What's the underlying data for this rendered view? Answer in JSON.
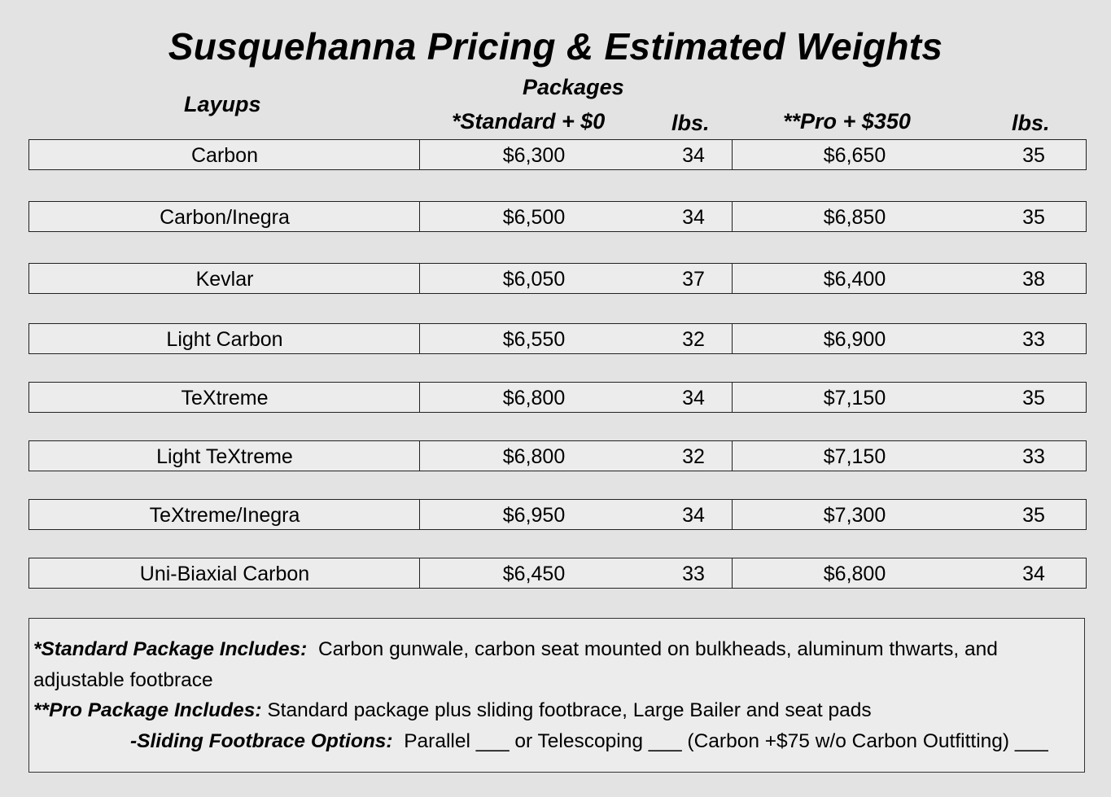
{
  "title": "Susquehanna Pricing & Estimated Weights",
  "headers": {
    "layups": "Layups",
    "packages": "Packages",
    "standard": "*Standard +  $0",
    "standard_lbs": "lbs.",
    "pro": "**Pro +  $350",
    "pro_lbs": "lbs."
  },
  "rows": [
    {
      "layup": "Carbon",
      "standard_price": "$6,300",
      "standard_lbs": "34",
      "pro_price": "$6,650",
      "pro_lbs": "35"
    },
    {
      "layup": "Carbon/Inegra",
      "standard_price": "$6,500",
      "standard_lbs": "34",
      "pro_price": "$6,850",
      "pro_lbs": "35"
    },
    {
      "layup": "Kevlar",
      "standard_price": "$6,050",
      "standard_lbs": "37",
      "pro_price": "$6,400",
      "pro_lbs": "38"
    },
    {
      "layup": "Light Carbon",
      "standard_price": "$6,550",
      "standard_lbs": "32",
      "pro_price": "$6,900",
      "pro_lbs": "33"
    },
    {
      "layup": "TeXtreme",
      "standard_price": "$6,800",
      "standard_lbs": "34",
      "pro_price": "$7,150",
      "pro_lbs": "35"
    },
    {
      "layup": "Light TeXtreme",
      "standard_price": "$6,800",
      "standard_lbs": "32",
      "pro_price": "$7,150",
      "pro_lbs": "33"
    },
    {
      "layup": "TeXtreme/Inegra",
      "standard_price": "$6,950",
      "standard_lbs": "34",
      "pro_price": "$7,300",
      "pro_lbs": "35"
    },
    {
      "layup": "Uni-Biaxial Carbon",
      "standard_price": "$6,450",
      "standard_lbs": "33",
      "pro_price": "$6,800",
      "pro_lbs": "34"
    }
  ],
  "notes": {
    "standard_label": "*Standard Package Includes:",
    "standard_text": "Carbon gunwale, carbon seat mounted on bulkheads, aluminum thwarts, and",
    "standard_text_cont": "adjustable footbrace",
    "pro_label": "**Pro Package  Includes:",
    "pro_text": "Standard package plus sliding footbrace, Large Bailer and seat pads",
    "sliding_label": "-Sliding Footbrace Options:",
    "sliding_text": "Parallel ___ or Telescoping ___ (Carbon +$75 w/o Carbon Outfitting) ___"
  }
}
